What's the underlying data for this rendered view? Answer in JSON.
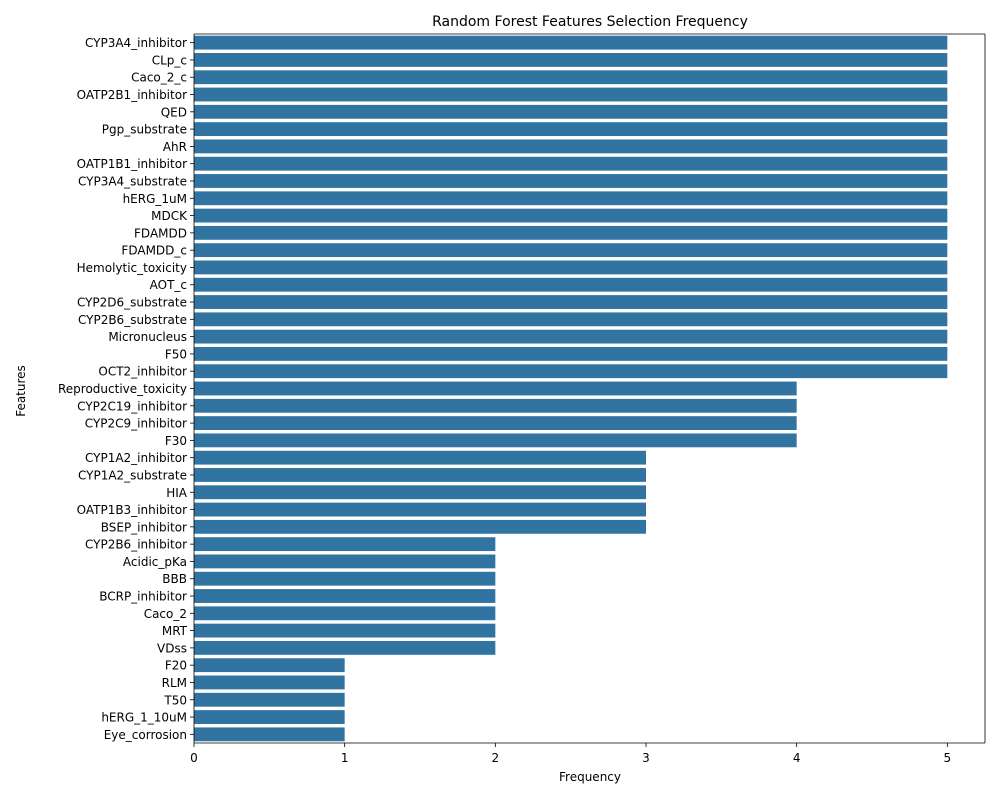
{
  "chart_data": {
    "type": "bar",
    "orientation": "horizontal",
    "title": "Random Forest Features Selection Frequency",
    "xlabel": "Frequency",
    "ylabel": "Features",
    "xlim": [
      0,
      5.25
    ],
    "xticks": [
      0,
      1,
      2,
      3,
      4,
      5
    ],
    "grid": false,
    "bar_color": "#3274a1",
    "categories": [
      "CYP3A4_inhibitor",
      "CLp_c",
      "Caco_2_c",
      "OATP2B1_inhibitor",
      "QED",
      "Pgp_substrate",
      "AhR",
      "OATP1B1_inhibitor",
      "CYP3A4_substrate",
      "hERG_1uM",
      "MDCK",
      "FDAMDD",
      "FDAMDD_c",
      "Hemolytic_toxicity",
      "AOT_c",
      "CYP2D6_substrate",
      "CYP2B6_substrate",
      "Micronucleus",
      "F50",
      "OCT2_inhibitor",
      "Reproductive_toxicity",
      "CYP2C19_inhibitor",
      "CYP2C9_inhibitor",
      "F30",
      "CYP1A2_inhibitor",
      "CYP1A2_substrate",
      "HIA",
      "OATP1B3_inhibitor",
      "BSEP_inhibitor",
      "CYP2B6_inhibitor",
      "Acidic_pKa",
      "BBB",
      "BCRP_inhibitor",
      "Caco_2",
      "MRT",
      "VDss",
      "F20",
      "RLM",
      "T50",
      "hERG_1_10uM",
      "Eye_corrosion"
    ],
    "values": [
      5,
      5,
      5,
      5,
      5,
      5,
      5,
      5,
      5,
      5,
      5,
      5,
      5,
      5,
      5,
      5,
      5,
      5,
      5,
      5,
      4,
      4,
      4,
      4,
      3,
      3,
      3,
      3,
      3,
      2,
      2,
      2,
      2,
      2,
      2,
      2,
      1,
      1,
      1,
      1,
      1
    ]
  }
}
